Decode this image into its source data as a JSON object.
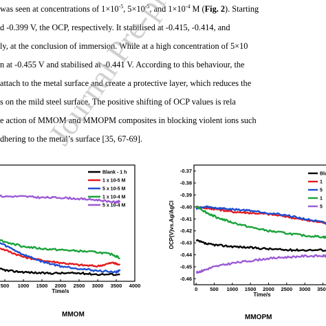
{
  "paragraph": {
    "lines": [
      [
        {
          "t": " was seen at concentrations of 1×10"
        },
        {
          "t": "-5",
          "sup": true
        },
        {
          "t": ", 5×10"
        },
        {
          "t": "-5",
          "sup": true
        },
        {
          "t": ", and 1×10"
        },
        {
          "t": "-4",
          "sup": true
        },
        {
          "t": " M ("
        },
        {
          "t": "Fig. 2",
          "b": true
        },
        {
          "t": "). Starting"
        }
      ],
      [
        {
          "t": "d -0.399 V, the OCP, respectively. It stabilised at -0.415, -0.414, and"
        }
      ],
      [
        {
          "t": "ly, at the conclusion of immersion. While at a high concentration of 5×10"
        }
      ],
      [
        {
          "t": "n at -0.455 V and stabilised at -0.441 V. According to this behaviour, the"
        }
      ],
      [
        {
          "t": " attach to the metal surface and create a protective layer, which reduces the"
        }
      ],
      [
        {
          "t": "s on the mild steel surface. The positive shifting of OCP values is rela"
        }
      ],
      [
        {
          "t": "e action of MMOM and MMOPM composites in blocking violent ions such"
        }
      ],
      [
        {
          "t": "dhering to the metal’s surface [35, 67-69]."
        }
      ]
    ]
  },
  "watermark": "Journal Pre-proof",
  "figure_left": {
    "caption": "MMOM",
    "chart_data": {
      "type": "line",
      "xlabel": "Time/s",
      "x_ticks": [
        500,
        1000,
        1500,
        2000,
        2500,
        3000,
        3500,
        4000
      ],
      "xlim": [
        0,
        4000
      ],
      "ylim": [
        -0.47,
        -0.37
      ],
      "legend": [
        "Blank - 1 h",
        "1 x 10-5 M",
        "5 x 10-5 M",
        "1 x 10-4 M",
        "5 x 10-4 M"
      ],
      "series": [
        {
          "name": "Blank - 1 h",
          "color": "#000000",
          "x": [
            0,
            300,
            600,
            1000,
            1500,
            2000,
            2500,
            3000,
            3600
          ],
          "y": [
            -0.455,
            -0.459,
            -0.461,
            -0.462,
            -0.463,
            -0.463,
            -0.463,
            -0.464,
            -0.464
          ]
        },
        {
          "name": "1 x 10-5 M",
          "color": "#e41a1c",
          "x": [
            0,
            500,
            1000,
            1500,
            2000,
            2500,
            3000,
            3400,
            3600
          ],
          "y": [
            -0.437,
            -0.443,
            -0.449,
            -0.452,
            -0.454,
            -0.456,
            -0.457,
            -0.454,
            -0.456
          ]
        },
        {
          "name": "5 x 10-5 M",
          "color": "#1f4fd1",
          "x": [
            0,
            500,
            1000,
            1500,
            2000,
            2500,
            3000,
            3500,
            3600
          ],
          "y": [
            -0.432,
            -0.439,
            -0.447,
            -0.453,
            -0.457,
            -0.459,
            -0.461,
            -0.462,
            -0.461
          ]
        },
        {
          "name": "1 x 10-4 M",
          "color": "#19a33a",
          "x": [
            0,
            500,
            1000,
            1500,
            2000,
            2500,
            3000,
            3400,
            3600
          ],
          "y": [
            -0.431,
            -0.436,
            -0.44,
            -0.442,
            -0.443,
            -0.444,
            -0.445,
            -0.447,
            -0.45
          ]
        },
        {
          "name": "5 x 10-4 M",
          "color": "#9b59d6",
          "x": [
            0,
            500,
            1000,
            1500,
            2000,
            2500,
            3000,
            3500,
            3600
          ],
          "y": [
            -0.396,
            -0.397,
            -0.397,
            -0.398,
            -0.398,
            -0.399,
            -0.4,
            -0.402,
            -0.401
          ]
        }
      ]
    }
  },
  "figure_right": {
    "caption": "MMOPM",
    "chart_data": {
      "type": "line",
      "xlabel": "Time/s",
      "ylabel": "OCP(V)vs.Ag/AgCl",
      "y_ticks": [
        "-0.37",
        "-0.38",
        "-0.39",
        "-0.40",
        "-0.41",
        "-0.42",
        "-0.43",
        "-0.44",
        "-0.45",
        "-0.46"
      ],
      "x_ticks": [
        0,
        500,
        1000,
        1500,
        2000,
        2500,
        3000,
        3500
      ],
      "xlim": [
        -60,
        3700
      ],
      "ylim": [
        -0.465,
        -0.365
      ],
      "legend": [
        "Blan",
        "1",
        "5",
        "1",
        "5"
      ],
      "series": [
        {
          "name": "Blan",
          "color": "#000000",
          "x": [
            0,
            300,
            600,
            1000,
            1500,
            2000,
            2500,
            3000,
            3700
          ],
          "y": [
            -0.428,
            -0.431,
            -0.432,
            -0.433,
            -0.434,
            -0.435,
            -0.436,
            -0.436,
            -0.436
          ]
        },
        {
          "name": "1",
          "color": "#e41a1c",
          "x": [
            0,
            300,
            600,
            1000,
            1500,
            2000,
            2500,
            3000,
            3500,
            3700
          ],
          "y": [
            -0.4,
            -0.401,
            -0.402,
            -0.404,
            -0.405,
            -0.406,
            -0.408,
            -0.411,
            -0.413,
            -0.414
          ]
        },
        {
          "name": "5",
          "color": "#1f4fd1",
          "x": [
            0,
            300,
            600,
            1000,
            1500,
            2000,
            2500,
            3000,
            3500,
            3700
          ],
          "y": [
            -0.401,
            -0.4,
            -0.401,
            -0.402,
            -0.403,
            -0.405,
            -0.407,
            -0.41,
            -0.413,
            -0.415
          ]
        },
        {
          "name": "1",
          "color": "#19a33a",
          "x": [
            0,
            300,
            600,
            1000,
            1500,
            2000,
            2500,
            3000,
            3500,
            3700
          ],
          "y": [
            -0.399,
            -0.405,
            -0.409,
            -0.413,
            -0.417,
            -0.42,
            -0.422,
            -0.424,
            -0.425,
            -0.426
          ]
        },
        {
          "name": "5",
          "color": "#9b59d6",
          "x": [
            0,
            200,
            500,
            1000,
            1500,
            2000,
            2500,
            3000,
            3500,
            3700
          ],
          "y": [
            -0.455,
            -0.453,
            -0.45,
            -0.447,
            -0.445,
            -0.443,
            -0.442,
            -0.441,
            -0.441,
            -0.441
          ]
        }
      ]
    }
  }
}
